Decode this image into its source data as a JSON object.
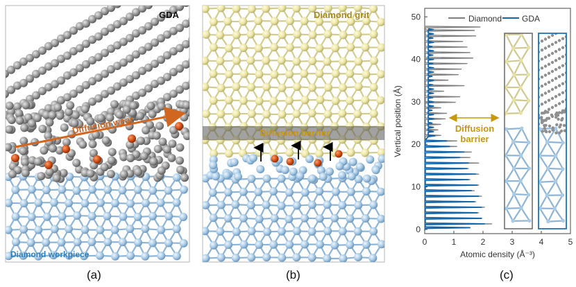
{
  "panel_a": {
    "label": "(a)",
    "gda_label": "GDA",
    "wear_label": "Diffusion wear",
    "workpiece_label": "Diamond workpiece"
  },
  "panel_b": {
    "label": "(b)",
    "grit_label": "Diamond grit",
    "barrier_label": "Diffusion barrier"
  },
  "panel_c": {
    "label": "(c)",
    "barrier_annotation_line1": "Diffusion",
    "barrier_annotation_line2": "barrier"
  },
  "colors": {
    "gda_atom": "#9b9b9b",
    "grit_atom": "#ece6a4",
    "workpiece_atom": "#a9cbe6",
    "diffused_atom": "#d2521a",
    "arrow_orange": "#d0661f",
    "annotation_gold": "#c8970f",
    "blue_label": "#2a7fbf",
    "diamond_line": "#7f7f7f",
    "gda_line": "#1565a8"
  },
  "chart_data": {
    "type": "line",
    "xlabel": "Atomic density (Å⁻³)",
    "ylabel": "Vertical position (Å)",
    "xlim": [
      0,
      5
    ],
    "ylim": [
      -1,
      52
    ],
    "xticks": [
      0,
      1,
      2,
      3,
      4,
      5
    ],
    "yticks": [
      0,
      10,
      20,
      30,
      40,
      50
    ],
    "legend_position": "top-right",
    "series": [
      {
        "name": "Diamond",
        "color": "#7f7f7f",
        "peaks_y": [
          0.4,
          1.3,
          2.6,
          3.9,
          5.2,
          6.5,
          7.8,
          9.1,
          10.4,
          11.7,
          13.0,
          14.3,
          15.6,
          16.9,
          18.2,
          19.5,
          20.8,
          22.1,
          23.4,
          24.7,
          26.0,
          27.3,
          28.6,
          29.9,
          31.2,
          32.5,
          33.8,
          35.1,
          36.4,
          37.7,
          39.0,
          40.3,
          41.6,
          42.9,
          44.2,
          45.5,
          46.8,
          47.6
        ],
        "peaks_x": [
          1.55,
          2.3,
          1.95,
          1.85,
          2.05,
          1.75,
          1.95,
          1.7,
          1.85,
          1.55,
          1.85,
          1.5,
          1.85,
          1.55,
          1.6,
          1.1,
          1.1,
          0.55,
          0.45,
          0.55,
          0.7,
          0.75,
          0.55,
          1.05,
          1.2,
          0.65,
          1.35,
          0.8,
          1.15,
          1.25,
          1.45,
          1.65,
          1.55,
          1.45,
          1.3,
          1.75,
          1.7,
          1.9
        ]
      },
      {
        "name": "GDA",
        "color": "#1565a8",
        "peaks_y": [
          0.4,
          1.3,
          2.6,
          3.9,
          5.2,
          6.5,
          7.8,
          9.1,
          10.4,
          11.7,
          13.0,
          14.3,
          15.6,
          16.9,
          18.2,
          19.5,
          20.8,
          22.0,
          23.0,
          24.0,
          25.0,
          26.0,
          27.0,
          28.0,
          29.0,
          30.0,
          31.0,
          32.0,
          33.0,
          34.0,
          35.0,
          36.0,
          37.0,
          38.0,
          39.0,
          40.0,
          41.0,
          42.0,
          43.0,
          44.0,
          45.0,
          46.0,
          47.0
        ],
        "peaks_x": [
          1.55,
          2.05,
          1.95,
          1.8,
          1.95,
          1.7,
          1.85,
          1.6,
          1.8,
          1.5,
          1.75,
          1.45,
          1.5,
          1.2,
          1.35,
          0.85,
          0.75,
          0.35,
          0.3,
          0.3,
          0.25,
          0.3,
          0.3,
          0.25,
          0.3,
          0.3,
          0.28,
          0.3,
          0.3,
          0.28,
          0.3,
          0.25,
          0.3,
          0.3,
          0.28,
          0.3,
          0.28,
          0.3,
          0.25,
          0.3,
          0.28,
          0.3,
          0.3
        ]
      }
    ]
  }
}
